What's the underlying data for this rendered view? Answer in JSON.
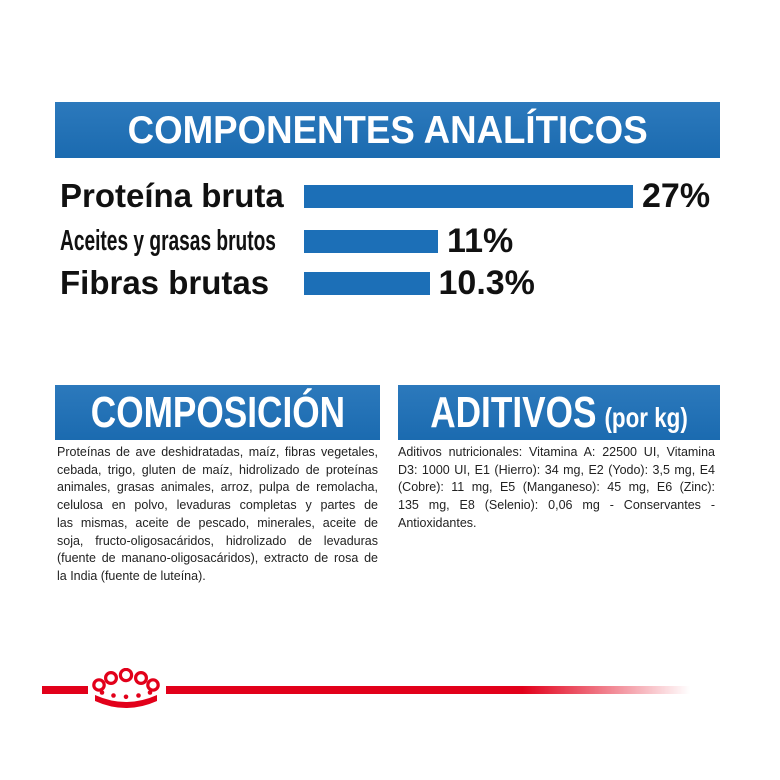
{
  "colors": {
    "accent_blue": "#1c6fb7",
    "brand_red": "#e2001a",
    "text": "#222222"
  },
  "logo": {
    "icon": "royal-canin-crown-icon"
  },
  "chart_data": {
    "type": "bar",
    "orientation": "horizontal",
    "title": "COMPONENTES ANALÍTICOS",
    "categories": [
      "Proteína bruta",
      "Aceites y grasas brutos",
      "Fibras brutas"
    ],
    "values": [
      27,
      11,
      10.3
    ],
    "value_labels": [
      "27%",
      "11%",
      "10.3%"
    ],
    "grid": false,
    "series_color": "#1c6fb7"
  },
  "composition": {
    "title": "COMPOSICIÓN",
    "lines": [
      "Proteínas de ave deshidratadas, maíz, fibras vegetales,",
      "cebada, trigo, gluten de maíz, hidrolizado de proteínas",
      "animales, grasas animales, arroz, pulpa de remolacha,",
      "celulosa en polvo, levaduras completas y partes de",
      "las mismas, aceite de pescado, minerales, aceite de",
      "soja, fructo-oligosacáridos, hidrolizado de levaduras",
      "(fuente de manano-oligosacáridos), extracto de rosa de",
      "la India (fuente de luteína)."
    ]
  },
  "additives": {
    "title": "ADITIVOS",
    "unit_note": "(por kg)",
    "lines": [
      "Aditivos nutricionales: Vitamina A: 22500 UI, Vitamina",
      "D3: 1000 UI, E1 (Hierro): 34 mg, E2 (Yodo): 3,5 mg, E4",
      "(Cobre): 11 mg, E5 (Manganeso): 45 mg, E6 (Zinc):",
      "135 mg, E8 (Selenio): 0,06 mg - Conservantes -",
      "Antioxidantes."
    ]
  }
}
